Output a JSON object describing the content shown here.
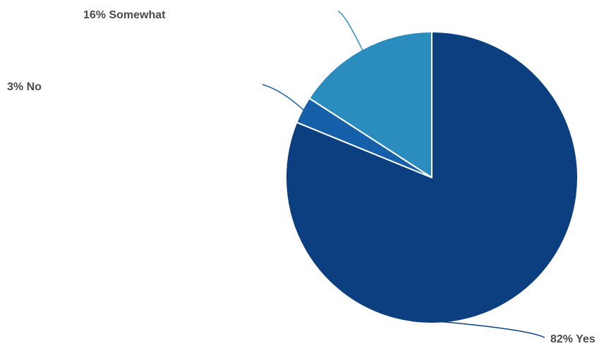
{
  "chart_data": {
    "type": "pie",
    "categories": [
      "Yes",
      "No",
      "Somewhat"
    ],
    "values": [
      82,
      3,
      16
    ],
    "labels": [
      "82% Yes",
      "3% No",
      "16% Somewhat"
    ],
    "colors": [
      "#0b3f7f",
      "#1560a9",
      "#2b8dbd"
    ],
    "start_angle_deg": 0,
    "direction": "clockwise",
    "legend": "none",
    "title": ""
  }
}
